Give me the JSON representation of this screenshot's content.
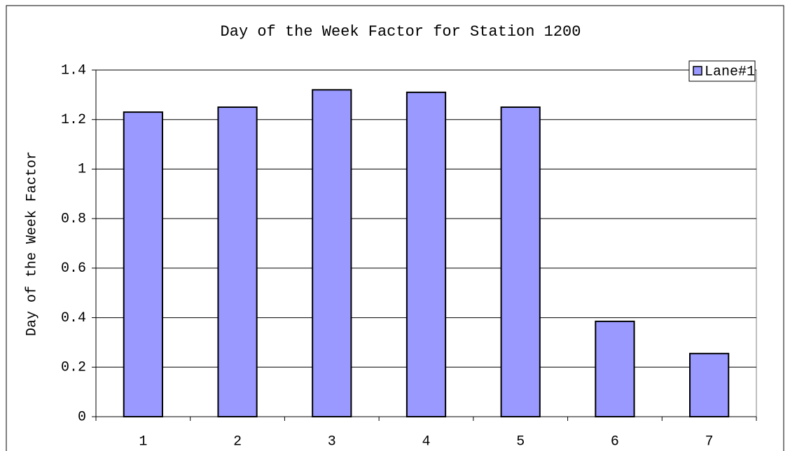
{
  "chart_data": {
    "type": "bar",
    "title": "Day of the Week Factor for Station 1200",
    "y_label": "Day of the Week Factor",
    "categories": [
      "1",
      "2",
      "3",
      "4",
      "5",
      "6",
      "7"
    ],
    "series": [
      {
        "name": "Lane#1",
        "color": "#9999ff",
        "values": [
          1.23,
          1.25,
          1.32,
          1.31,
          1.25,
          0.385,
          0.255
        ]
      }
    ],
    "ylim": [
      0,
      1.4
    ],
    "yticks": [
      0,
      0.2,
      0.4,
      0.6,
      0.8,
      1,
      1.2,
      1.4
    ],
    "grid": true,
    "legend": "top-right"
  }
}
